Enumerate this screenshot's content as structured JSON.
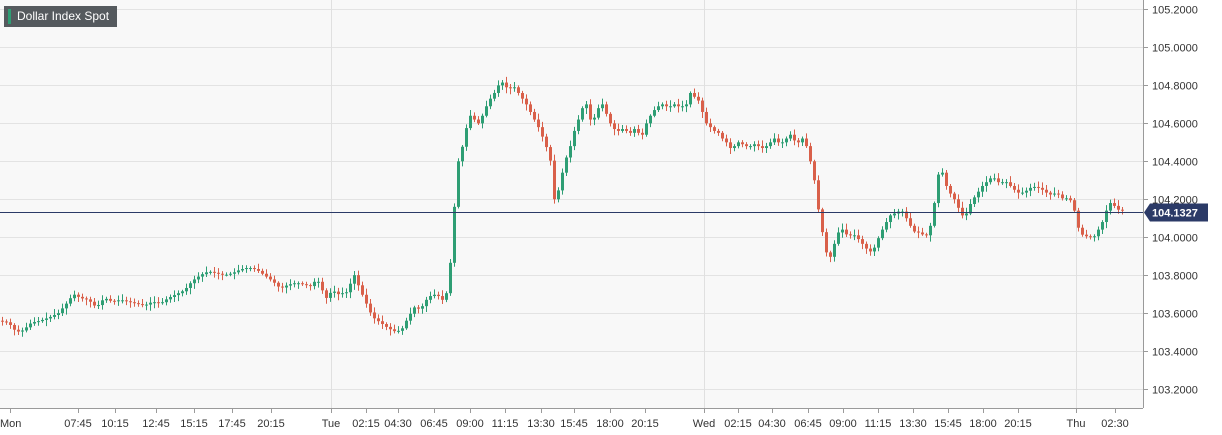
{
  "chart_data": {
    "type": "candlestick",
    "title": "Dollar Index Spot",
    "last_price": "104.1327",
    "ylim": [
      103.1,
      105.25
    ],
    "y_ticks": [
      "105.2000",
      "105.0000",
      "104.8000",
      "104.6000",
      "104.4000",
      "104.2000",
      "104.0000",
      "103.8000",
      "103.6000",
      "103.4000",
      "103.2000"
    ],
    "x_ticks": [
      "Mon",
      "07:45",
      "10:15",
      "12:45",
      "15:15",
      "17:45",
      "20:15",
      "Tue",
      "02:15",
      "04:30",
      "06:45",
      "09:00",
      "11:15",
      "13:30",
      "15:45",
      "18:00",
      "20:15",
      "Wed",
      "02:15",
      "04:30",
      "06:45",
      "09:00",
      "11:15",
      "13:30",
      "15:45",
      "18:00",
      "20:15",
      "Thu",
      "02:30"
    ],
    "colors": {
      "up": "#2e9e74",
      "down": "#d9604a",
      "price_line": "#2b3a67",
      "grid": "#e3e3e3",
      "plot_bg": "#f8f8f8"
    },
    "path_points": [
      [
        0,
        103.56
      ],
      [
        10,
        103.55
      ],
      [
        18,
        103.5
      ],
      [
        25,
        103.51
      ],
      [
        33,
        103.55
      ],
      [
        42,
        103.56
      ],
      [
        52,
        103.58
      ],
      [
        60,
        103.6
      ],
      [
        68,
        103.65
      ],
      [
        75,
        103.7
      ],
      [
        82,
        103.68
      ],
      [
        90,
        103.67
      ],
      [
        98,
        103.63
      ],
      [
        106,
        103.68
      ],
      [
        114,
        103.66
      ],
      [
        122,
        103.67
      ],
      [
        130,
        103.66
      ],
      [
        138,
        103.65
      ],
      [
        146,
        103.64
      ],
      [
        154,
        103.66
      ],
      [
        162,
        103.65
      ],
      [
        170,
        103.68
      ],
      [
        178,
        103.7
      ],
      [
        186,
        103.72
      ],
      [
        194,
        103.77
      ],
      [
        202,
        103.8
      ],
      [
        210,
        103.82
      ],
      [
        218,
        103.81
      ],
      [
        226,
        103.8
      ],
      [
        234,
        103.81
      ],
      [
        242,
        103.83
      ],
      [
        250,
        103.84
      ],
      [
        258,
        103.83
      ],
      [
        266,
        103.8
      ],
      [
        274,
        103.77
      ],
      [
        282,
        103.73
      ],
      [
        290,
        103.75
      ],
      [
        298,
        103.76
      ],
      [
        306,
        103.75
      ],
      [
        314,
        103.74
      ],
      [
        318,
        103.79
      ],
      [
        322,
        103.74
      ],
      [
        328,
        103.68
      ],
      [
        334,
        103.72
      ],
      [
        340,
        103.7
      ],
      [
        348,
        103.71
      ],
      [
        356,
        103.8
      ],
      [
        362,
        103.72
      ],
      [
        368,
        103.65
      ],
      [
        374,
        103.58
      ],
      [
        382,
        103.55
      ],
      [
        390,
        103.52
      ],
      [
        398,
        103.5
      ],
      [
        404,
        103.52
      ],
      [
        410,
        103.58
      ],
      [
        416,
        103.63
      ],
      [
        422,
        103.62
      ],
      [
        428,
        103.67
      ],
      [
        434,
        103.7
      ],
      [
        440,
        103.69
      ],
      [
        446,
        103.66
      ],
      [
        450,
        103.75
      ],
      [
        454,
        103.98
      ],
      [
        457,
        104.25
      ],
      [
        460,
        104.4
      ],
      [
        463,
        104.45
      ],
      [
        466,
        104.53
      ],
      [
        470,
        104.62
      ],
      [
        474,
        104.66
      ],
      [
        478,
        104.58
      ],
      [
        482,
        104.62
      ],
      [
        486,
        104.66
      ],
      [
        490,
        104.72
      ],
      [
        494,
        104.74
      ],
      [
        498,
        104.78
      ],
      [
        502,
        104.82
      ],
      [
        506,
        104.81
      ],
      [
        510,
        104.77
      ],
      [
        514,
        104.8
      ],
      [
        518,
        104.78
      ],
      [
        522,
        104.74
      ],
      [
        526,
        104.72
      ],
      [
        530,
        104.68
      ],
      [
        534,
        104.64
      ],
      [
        538,
        104.6
      ],
      [
        542,
        104.56
      ],
      [
        546,
        104.5
      ],
      [
        550,
        104.45
      ],
      [
        553,
        104.38
      ],
      [
        556,
        104.2
      ],
      [
        559,
        104.22
      ],
      [
        562,
        104.3
      ],
      [
        565,
        104.36
      ],
      [
        568,
        104.42
      ],
      [
        572,
        104.48
      ],
      [
        576,
        104.56
      ],
      [
        580,
        104.62
      ],
      [
        584,
        104.68
      ],
      [
        588,
        104.7
      ],
      [
        592,
        104.62
      ],
      [
        596,
        104.63
      ],
      [
        600,
        104.68
      ],
      [
        604,
        104.7
      ],
      [
        608,
        104.65
      ],
      [
        612,
        104.6
      ],
      [
        616,
        104.57
      ],
      [
        620,
        104.56
      ],
      [
        624,
        104.57
      ],
      [
        628,
        104.56
      ],
      [
        632,
        104.55
      ],
      [
        636,
        104.57
      ],
      [
        640,
        104.55
      ],
      [
        644,
        104.54
      ],
      [
        648,
        104.6
      ],
      [
        652,
        104.64
      ],
      [
        656,
        104.67
      ],
      [
        660,
        104.69
      ],
      [
        664,
        104.7
      ],
      [
        668,
        104.69
      ],
      [
        672,
        104.69
      ],
      [
        676,
        104.7
      ],
      [
        680,
        104.69
      ],
      [
        684,
        104.69
      ],
      [
        688,
        104.7
      ],
      [
        692,
        104.76
      ],
      [
        696,
        104.74
      ],
      [
        700,
        104.72
      ],
      [
        704,
        104.66
      ],
      [
        708,
        104.6
      ],
      [
        712,
        104.58
      ],
      [
        716,
        104.56
      ],
      [
        720,
        104.55
      ],
      [
        724,
        104.52
      ],
      [
        728,
        104.5
      ],
      [
        732,
        104.47
      ],
      [
        736,
        104.48
      ],
      [
        740,
        104.5
      ],
      [
        744,
        104.49
      ],
      [
        748,
        104.48
      ],
      [
        752,
        104.48
      ],
      [
        756,
        104.49
      ],
      [
        760,
        104.48
      ],
      [
        764,
        104.47
      ],
      [
        768,
        104.48
      ],
      [
        772,
        104.5
      ],
      [
        776,
        104.52
      ],
      [
        780,
        104.5
      ],
      [
        784,
        104.5
      ],
      [
        788,
        104.52
      ],
      [
        792,
        104.54
      ],
      [
        796,
        104.51
      ],
      [
        800,
        104.5
      ],
      [
        804,
        104.52
      ],
      [
        808,
        104.48
      ],
      [
        812,
        104.4
      ],
      [
        816,
        104.3
      ],
      [
        819,
        104.18
      ],
      [
        822,
        104.08
      ],
      [
        825,
        104.0
      ],
      [
        828,
        103.92
      ],
      [
        831,
        103.88
      ],
      [
        834,
        103.93
      ],
      [
        838,
        104.0
      ],
      [
        842,
        104.05
      ],
      [
        846,
        104.03
      ],
      [
        850,
        104.0
      ],
      [
        854,
        104.02
      ],
      [
        858,
        104.0
      ],
      [
        862,
        103.98
      ],
      [
        866,
        103.95
      ],
      [
        870,
        103.93
      ],
      [
        874,
        103.92
      ],
      [
        878,
        103.97
      ],
      [
        882,
        104.02
      ],
      [
        886,
        104.06
      ],
      [
        890,
        104.1
      ],
      [
        894,
        104.13
      ],
      [
        898,
        104.12
      ],
      [
        902,
        104.15
      ],
      [
        906,
        104.12
      ],
      [
        910,
        104.08
      ],
      [
        914,
        104.04
      ],
      [
        918,
        104.02
      ],
      [
        922,
        104.03
      ],
      [
        926,
        104.0
      ],
      [
        930,
        104.02
      ],
      [
        934,
        104.1
      ],
      [
        937,
        104.22
      ],
      [
        940,
        104.33
      ],
      [
        943,
        104.36
      ],
      [
        946,
        104.3
      ],
      [
        950,
        104.24
      ],
      [
        954,
        104.22
      ],
      [
        958,
        104.18
      ],
      [
        962,
        104.13
      ],
      [
        966,
        104.1
      ],
      [
        970,
        104.15
      ],
      [
        974,
        104.2
      ],
      [
        978,
        104.22
      ],
      [
        982,
        104.26
      ],
      [
        986,
        104.28
      ],
      [
        990,
        104.3
      ],
      [
        994,
        104.32
      ],
      [
        998,
        104.3
      ],
      [
        1002,
        104.28
      ],
      [
        1006,
        104.3
      ],
      [
        1010,
        104.28
      ],
      [
        1014,
        104.26
      ],
      [
        1018,
        104.24
      ],
      [
        1022,
        104.23
      ],
      [
        1026,
        104.24
      ],
      [
        1030,
        104.25
      ],
      [
        1034,
        104.27
      ],
      [
        1038,
        104.26
      ],
      [
        1042,
        104.26
      ],
      [
        1046,
        104.24
      ],
      [
        1050,
        104.23
      ],
      [
        1054,
        104.22
      ],
      [
        1058,
        104.24
      ],
      [
        1062,
        104.21
      ],
      [
        1066,
        104.2
      ],
      [
        1070,
        104.21
      ],
      [
        1074,
        104.18
      ],
      [
        1077,
        104.12
      ],
      [
        1080,
        104.05
      ],
      [
        1083,
        104.02
      ],
      [
        1086,
        104.0
      ],
      [
        1090,
        104.01
      ],
      [
        1094,
        103.99
      ],
      [
        1098,
        104.02
      ],
      [
        1102,
        104.06
      ],
      [
        1106,
        104.1
      ],
      [
        1110,
        104.18
      ],
      [
        1114,
        104.18
      ],
      [
        1118,
        104.15
      ],
      [
        1122,
        104.14
      ]
    ]
  }
}
